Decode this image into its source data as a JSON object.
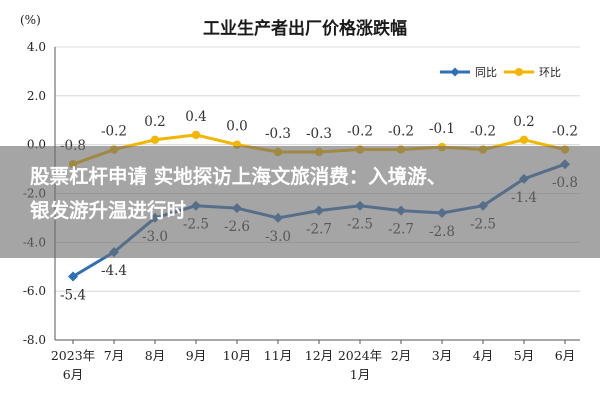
{
  "chart_data": {
    "type": "line",
    "title": "工业生产者出厂价格涨跌幅",
    "ylabel": "(%)",
    "ylim": [
      -8.0,
      4.0
    ],
    "yticks": [
      "4.0",
      "2.0",
      "0.0",
      "-2.0",
      "-4.0",
      "-6.0",
      "-8.0"
    ],
    "ytick_values": [
      4,
      2,
      0,
      -2,
      -4,
      -6,
      -8
    ],
    "categories": [
      [
        "2023年",
        "6月"
      ],
      [
        "7月"
      ],
      [
        "8月"
      ],
      [
        "9月"
      ],
      [
        "10月"
      ],
      [
        "11月"
      ],
      [
        "12月"
      ],
      [
        "2024年",
        "1月"
      ],
      [
        "2月"
      ],
      [
        "3月"
      ],
      [
        "4月"
      ],
      [
        "5月"
      ],
      [
        "6月"
      ]
    ],
    "grid": true,
    "legend_position": "top-right",
    "series": [
      {
        "name": "同比",
        "color": "#2e6fb6",
        "marker": "diamond",
        "values": [
          -5.4,
          -4.4,
          -3.0,
          -2.5,
          -2.6,
          -3.0,
          -2.7,
          -2.5,
          -2.7,
          -2.8,
          -2.5,
          -1.4,
          -0.8
        ],
        "labels": [
          "-5.4",
          "-4.4",
          "-3.0",
          "-2.5",
          "-2.6",
          "-3.0",
          "-2.7",
          "-2.5",
          "-2.7",
          "-2.8",
          "-2.5",
          "-1.4",
          "-0.8"
        ],
        "label_position": "below"
      },
      {
        "name": "环比",
        "color": "#f2b600",
        "marker": "circle",
        "values": [
          -0.8,
          -0.2,
          0.2,
          0.4,
          0.0,
          -0.3,
          -0.3,
          -0.2,
          -0.2,
          -0.1,
          -0.2,
          0.2,
          -0.2
        ],
        "labels": [
          "-0.8",
          "-0.2",
          "0.2",
          "0.4",
          "0.0",
          "-0.3",
          "-0.3",
          "-0.2",
          "-0.2",
          "-0.1",
          "-0.2",
          "0.2",
          "-0.2"
        ],
        "label_position": "above"
      }
    ]
  },
  "overlay": {
    "line1": "股票杠杆申请 实地探访上海文旅消费：入境游、",
    "line2": "银发游升温进行时",
    "background": "#6e6e6e"
  }
}
